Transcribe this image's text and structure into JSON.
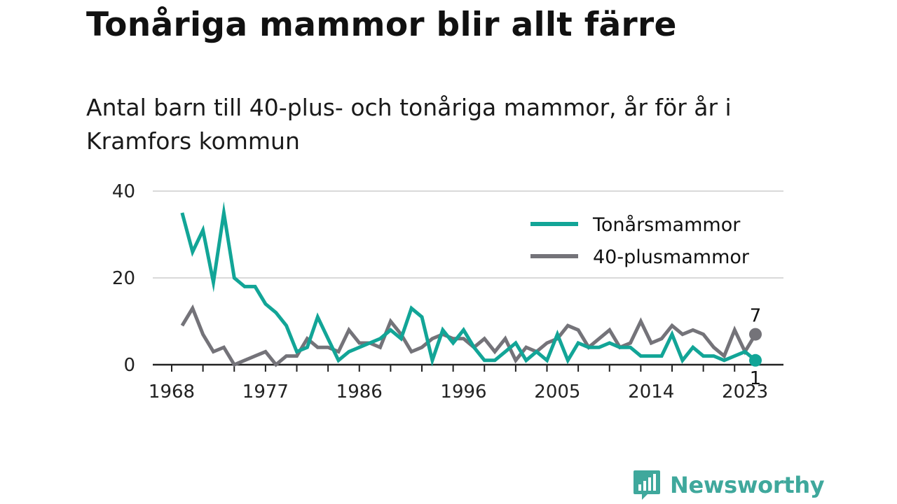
{
  "title": "Tonåriga mammor blir allt färre",
  "subtitle": "Antal barn till 40-plus- och tonåriga mammor, år för år i Kramfors kommun",
  "brand": "Newsworthy",
  "colors": {
    "teen": "#12a597",
    "forty": "#747379",
    "brand": "#3fa89c",
    "grid": "#d9d9d9",
    "axis": "#222222"
  },
  "chart_data": {
    "type": "line",
    "title": "Tonåriga mammor blir allt färre",
    "subtitle": "Antal barn till 40-plus- och tonåriga mammor, år för år i Kramfors kommun",
    "xlabel": "",
    "ylabel": "",
    "xlim": [
      1968,
      2024
    ],
    "ylim": [
      0,
      40
    ],
    "y_ticks": [
      0,
      20,
      40
    ],
    "x_ticks": [
      1968,
      1977,
      1986,
      1996,
      2005,
      2014,
      2023
    ],
    "grid": true,
    "legend_position": "top-right",
    "x": [
      1969,
      1970,
      1971,
      1972,
      1973,
      1974,
      1975,
      1976,
      1977,
      1978,
      1979,
      1980,
      1981,
      1982,
      1983,
      1984,
      1985,
      1986,
      1987,
      1988,
      1989,
      1990,
      1991,
      1992,
      1993,
      1994,
      1995,
      1996,
      1997,
      1998,
      1999,
      2000,
      2001,
      2002,
      2003,
      2004,
      2005,
      2006,
      2007,
      2008,
      2009,
      2010,
      2011,
      2012,
      2013,
      2014,
      2015,
      2016,
      2017,
      2018,
      2019,
      2020,
      2021,
      2022,
      2023,
      2024
    ],
    "series": [
      {
        "name": "Tonårsmammor",
        "color": "#12a597",
        "values": [
          35,
          26,
          31,
          19,
          35,
          20,
          18,
          18,
          14,
          12,
          9,
          3,
          4,
          11,
          6,
          1,
          3,
          4,
          5,
          6,
          8,
          6,
          13,
          11,
          1,
          8,
          5,
          8,
          4,
          1,
          1,
          3,
          5,
          1,
          3,
          1,
          7,
          1,
          5,
          4,
          4,
          5,
          4,
          4,
          2,
          2,
          2,
          7,
          1,
          4,
          2,
          2,
          1,
          2,
          3,
          1
        ]
      },
      {
        "name": "40-plusmammor",
        "color": "#747379",
        "values": [
          9,
          13,
          7,
          3,
          4,
          0,
          1,
          2,
          3,
          0,
          2,
          2,
          6,
          4,
          4,
          3,
          8,
          5,
          5,
          4,
          10,
          7,
          3,
          4,
          6,
          7,
          6,
          6,
          4,
          6,
          3,
          6,
          1,
          4,
          3,
          5,
          6,
          9,
          8,
          4,
          6,
          8,
          4,
          5,
          10,
          5,
          6,
          9,
          7,
          8,
          7,
          4,
          2,
          8,
          3,
          7
        ]
      }
    ],
    "end_labels": [
      {
        "series": "40-plusmammor",
        "text": "7"
      },
      {
        "series": "Tonårsmammor",
        "text": "1"
      }
    ]
  }
}
